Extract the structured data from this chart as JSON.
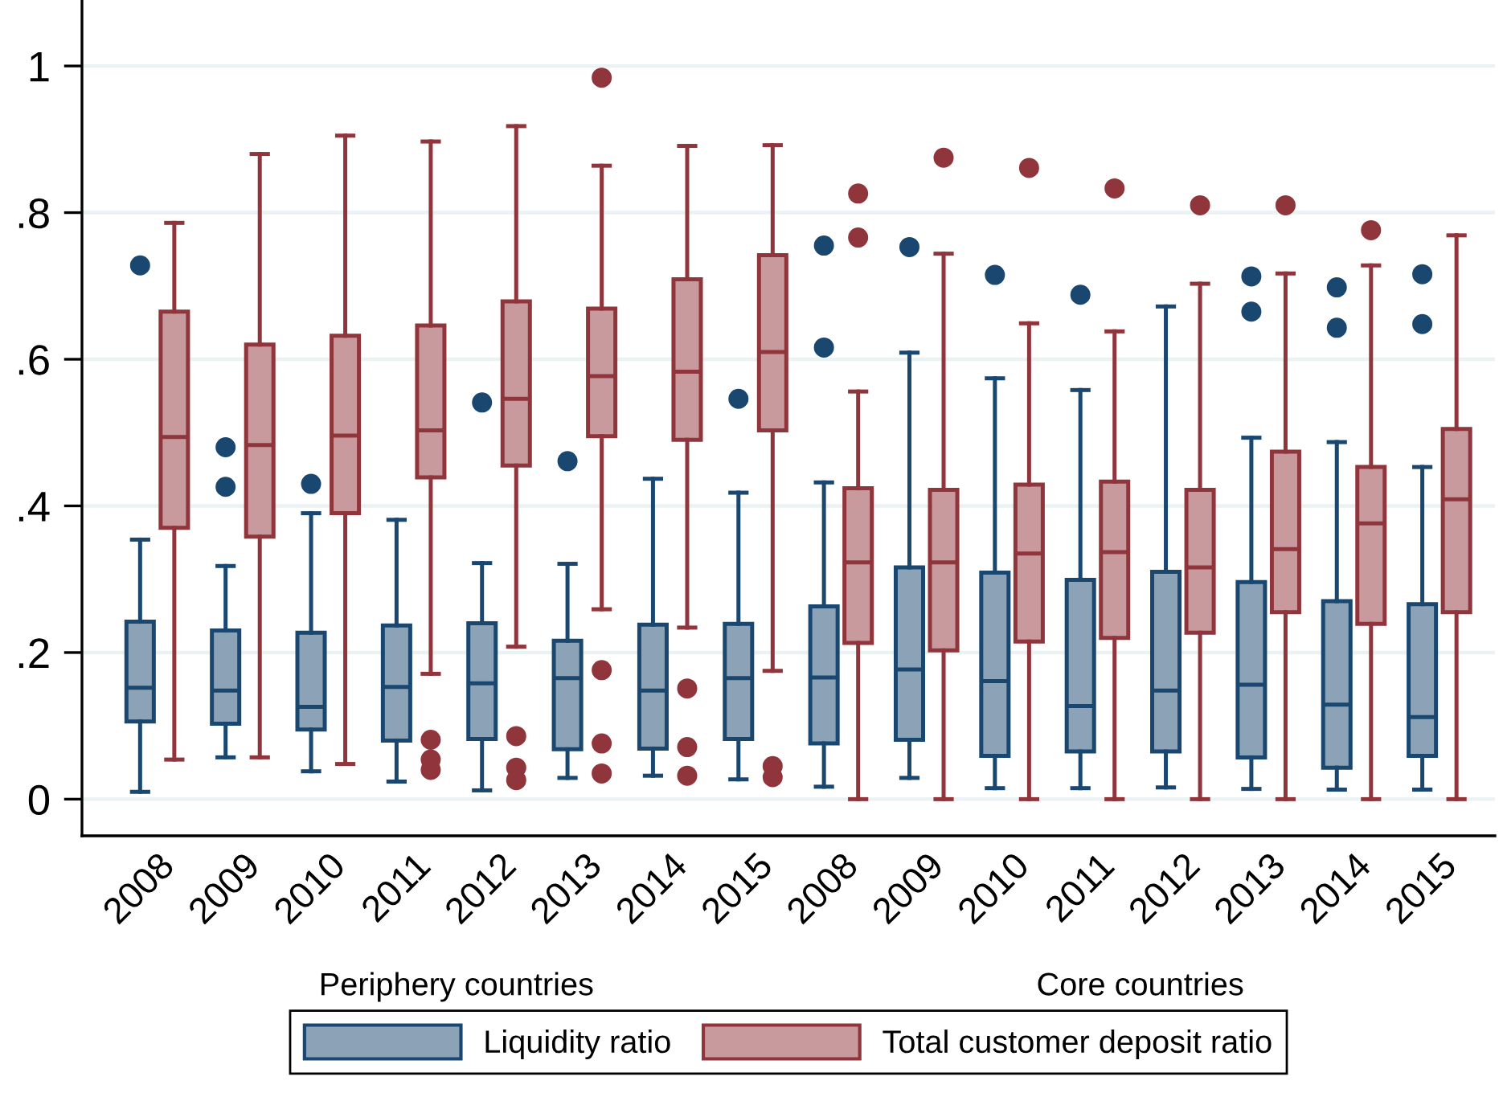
{
  "chart_data": {
    "type": "box",
    "categories": [
      "2008",
      "2009",
      "2010",
      "2011",
      "2012",
      "2013",
      "2014",
      "2015",
      "2008",
      "2009",
      "2010",
      "2011",
      "2012",
      "2013",
      "2014",
      "2015"
    ],
    "series": [
      {
        "name": "Liquidity ratio",
        "color": "#1a476f",
        "boxes": [
          {
            "low": 0.01,
            "q1": 0.106,
            "median": 0.152,
            "q3": 0.242,
            "high": 0.354,
            "outliers": [
              0.728
            ]
          },
          {
            "low": 0.057,
            "q1": 0.103,
            "median": 0.148,
            "q3": 0.23,
            "high": 0.318,
            "outliers": [
              0.48,
              0.426
            ]
          },
          {
            "low": 0.038,
            "q1": 0.095,
            "median": 0.126,
            "q3": 0.227,
            "high": 0.39,
            "outliers": [
              0.43
            ]
          },
          {
            "low": 0.024,
            "q1": 0.08,
            "median": 0.153,
            "q3": 0.237,
            "high": 0.381
          },
          {
            "low": 0.012,
            "q1": 0.082,
            "median": 0.158,
            "q3": 0.24,
            "high": 0.322,
            "outliers": [
              0.541
            ]
          },
          {
            "low": 0.029,
            "q1": 0.068,
            "median": 0.165,
            "q3": 0.216,
            "high": 0.321,
            "outliers": [
              0.461
            ]
          },
          {
            "low": 0.032,
            "q1": 0.069,
            "median": 0.148,
            "q3": 0.238,
            "high": 0.437
          },
          {
            "low": 0.027,
            "q1": 0.082,
            "median": 0.165,
            "q3": 0.239,
            "high": 0.418,
            "outliers": [
              0.546
            ]
          },
          {
            "low": 0.017,
            "q1": 0.076,
            "median": 0.166,
            "q3": 0.263,
            "high": 0.432,
            "outliers": [
              0.755,
              0.616
            ]
          },
          {
            "low": 0.029,
            "q1": 0.081,
            "median": 0.177,
            "q3": 0.316,
            "high": 0.609,
            "outliers": [
              0.753
            ]
          },
          {
            "low": 0.015,
            "q1": 0.059,
            "median": 0.161,
            "q3": 0.309,
            "high": 0.574,
            "outliers": [
              0.715
            ]
          },
          {
            "low": 0.015,
            "q1": 0.065,
            "median": 0.127,
            "q3": 0.299,
            "high": 0.558,
            "outliers": [
              0.688
            ]
          },
          {
            "low": 0.016,
            "q1": 0.065,
            "median": 0.148,
            "q3": 0.31,
            "high": 0.672
          },
          {
            "low": 0.014,
            "q1": 0.057,
            "median": 0.156,
            "q3": 0.296,
            "high": 0.493,
            "outliers": [
              0.713,
              0.665
            ]
          },
          {
            "low": 0.013,
            "q1": 0.043,
            "median": 0.129,
            "q3": 0.27,
            "high": 0.487,
            "outliers": [
              0.698,
              0.643
            ]
          },
          {
            "low": 0.013,
            "q1": 0.059,
            "median": 0.112,
            "q3": 0.266,
            "high": 0.453,
            "outliers": [
              0.716,
              0.648
            ]
          }
        ]
      },
      {
        "name": "Total customer deposit ratio",
        "color": "#90353b",
        "boxes": [
          {
            "low": 0.054,
            "q1": 0.37,
            "median": 0.494,
            "q3": 0.665,
            "high": 0.786
          },
          {
            "low": 0.057,
            "q1": 0.358,
            "median": 0.483,
            "q3": 0.62,
            "high": 0.88
          },
          {
            "low": 0.048,
            "q1": 0.39,
            "median": 0.496,
            "q3": 0.632,
            "high": 0.905
          },
          {
            "low": 0.171,
            "q1": 0.439,
            "median": 0.503,
            "q3": 0.646,
            "high": 0.897,
            "outliers": [
              0.081,
              0.054,
              0.04
            ]
          },
          {
            "low": 0.208,
            "q1": 0.455,
            "median": 0.546,
            "q3": 0.679,
            "high": 0.918,
            "outliers": [
              0.086,
              0.043,
              0.026
            ]
          },
          {
            "low": 0.259,
            "q1": 0.495,
            "median": 0.577,
            "q3": 0.669,
            "high": 0.864,
            "outliers": [
              0.984,
              0.176,
              0.076,
              0.035
            ]
          },
          {
            "low": 0.234,
            "q1": 0.49,
            "median": 0.583,
            "q3": 0.709,
            "high": 0.891,
            "outliers": [
              0.151,
              0.071,
              0.032
            ]
          },
          {
            "low": 0.175,
            "q1": 0.503,
            "median": 0.61,
            "q3": 0.742,
            "high": 0.892,
            "outliers": [
              0.045,
              0.03
            ]
          },
          {
            "low": 0,
            "q1": 0.213,
            "median": 0.323,
            "q3": 0.424,
            "high": 0.556,
            "outliers": [
              0.826,
              0.766
            ]
          },
          {
            "low": 0,
            "q1": 0.203,
            "median": 0.323,
            "q3": 0.422,
            "high": 0.744,
            "outliers": [
              0.875
            ]
          },
          {
            "low": 0,
            "q1": 0.215,
            "median": 0.335,
            "q3": 0.429,
            "high": 0.649,
            "outliers": [
              0.861
            ]
          },
          {
            "low": 0,
            "q1": 0.22,
            "median": 0.337,
            "q3": 0.433,
            "high": 0.638,
            "outliers": [
              0.833
            ]
          },
          {
            "low": 0,
            "q1": 0.227,
            "median": 0.316,
            "q3": 0.422,
            "high": 0.703,
            "outliers": [
              0.81
            ]
          },
          {
            "low": 0,
            "q1": 0.255,
            "median": 0.341,
            "q3": 0.474,
            "high": 0.717,
            "outliers": [
              0.81
            ]
          },
          {
            "low": 0,
            "q1": 0.239,
            "median": 0.376,
            "q3": 0.453,
            "high": 0.728,
            "outliers": [
              0.776
            ]
          },
          {
            "low": 0,
            "q1": 0.255,
            "median": 0.409,
            "q3": 0.505,
            "high": 0.769
          }
        ]
      }
    ],
    "ylim": [
      -0.05,
      1.09
    ],
    "yticks": [
      0,
      {
        "value": 0.2,
        "label": ".2"
      },
      {
        "value": 0.4,
        "label": ".4"
      },
      {
        "value": 0.6,
        "label": ".6"
      },
      {
        "value": 0.8,
        "label": ".8"
      },
      1
    ],
    "grid": "y",
    "legend": "bottom",
    "annotations": [
      "Periphery countries",
      "Core countries"
    ]
  }
}
